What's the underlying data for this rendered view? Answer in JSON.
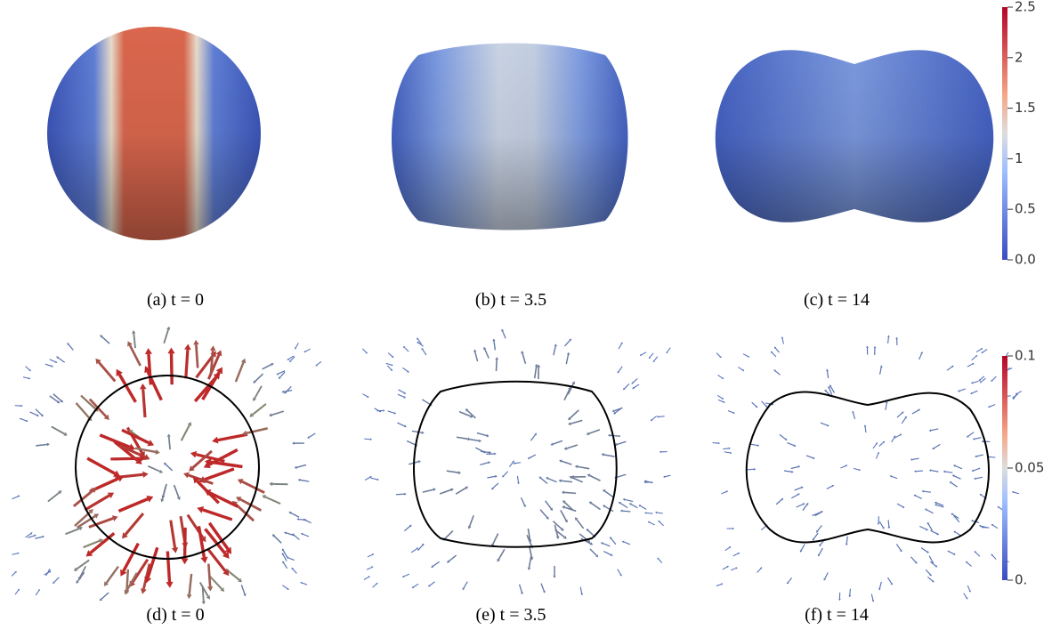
{
  "captions": [
    "(a) t = 0",
    "(b) t = 3.5",
    "(c) t = 14",
    "(d) t = 0",
    "(e) t = 3.5",
    "(f) t = 14"
  ],
  "colorbars": [
    {
      "ticks": [
        {
          "value": 0,
          "label": "0.0"
        },
        0.5,
        1,
        1.5,
        2,
        2.5
      ]
    },
    {
      "ticks": [
        {
          "value": 0,
          "label": "0."
        },
        0.05,
        0.1
      ]
    }
  ]
}
